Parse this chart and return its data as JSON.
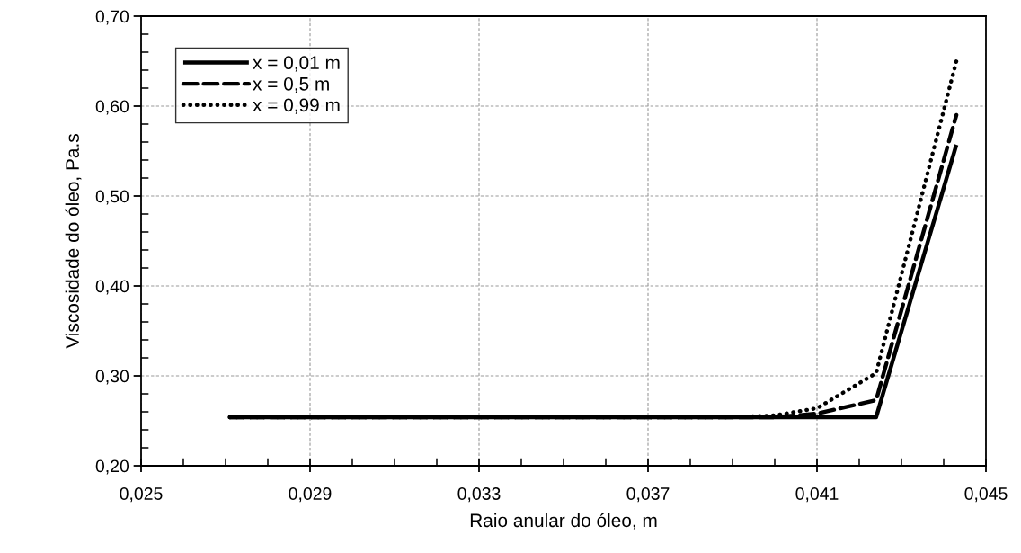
{
  "chart_data": {
    "type": "line",
    "xlabel": "Raio anular do óleo, m",
    "ylabel": "Viscosidade do óleo, Pa.s",
    "xlim": [
      0.025,
      0.045
    ],
    "xticks": [
      {
        "value": 0.025,
        "label": "0,025"
      },
      {
        "value": 0.029,
        "label": "0,029"
      },
      {
        "value": 0.033,
        "label": "0,033"
      },
      {
        "value": 0.037,
        "label": "0,037"
      },
      {
        "value": 0.041,
        "label": "0,041"
      },
      {
        "value": 0.045,
        "label": "0,045"
      }
    ],
    "ylim": [
      0.2,
      0.7
    ],
    "yticks": [
      {
        "value": 0.2,
        "label": "0,20"
      },
      {
        "value": 0.3,
        "label": "0,30"
      },
      {
        "value": 0.4,
        "label": "0,40"
      },
      {
        "value": 0.5,
        "label": "0,50"
      },
      {
        "value": 0.6,
        "label": "0,60"
      },
      {
        "value": 0.7,
        "label": "0,70"
      }
    ],
    "grid": true,
    "legend": "top left",
    "series": [
      {
        "name": "x = 0,01 m",
        "color": "#000000",
        "line_style": "solid",
        "x": [
          0.0271,
          0.0424,
          0.0443
        ],
        "values": [
          0.254,
          0.254,
          0.557
        ]
      },
      {
        "name": "x = 0,5 m",
        "color": "#000000",
        "line_style": "dashed",
        "x": [
          0.0271,
          0.04,
          0.041,
          0.0424,
          0.0443
        ],
        "values": [
          0.254,
          0.254,
          0.258,
          0.273,
          0.59
        ]
      },
      {
        "name": "x = 0,99 m",
        "color": "#000000",
        "line_style": "dotted",
        "x": [
          0.0271,
          0.039,
          0.04,
          0.041,
          0.0424,
          0.0443
        ],
        "values": [
          0.254,
          0.254,
          0.256,
          0.264,
          0.303,
          0.65
        ]
      }
    ]
  }
}
